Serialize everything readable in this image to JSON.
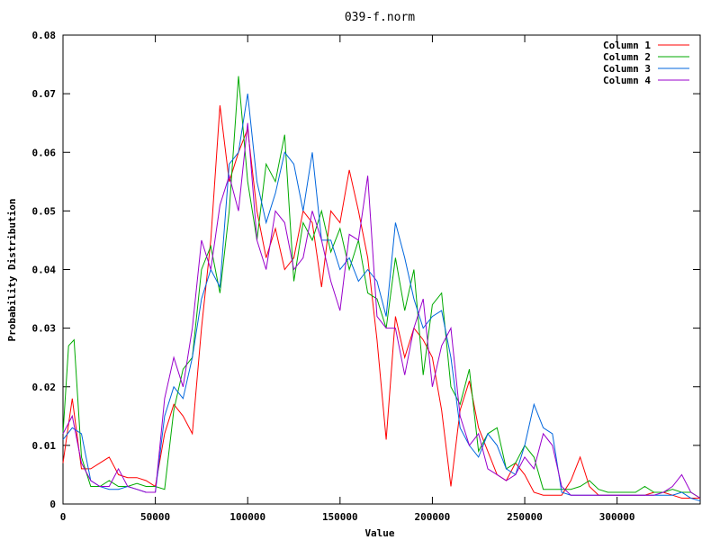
{
  "chart_data": {
    "type": "line",
    "title": "039-f.norm",
    "xlabel": "Value",
    "ylabel": "Probability Distribution",
    "xlim": [
      0,
      345000
    ],
    "ylim": [
      0,
      0.08
    ],
    "xticks": [
      0,
      50000,
      100000,
      150000,
      200000,
      250000,
      300000
    ],
    "yticks": [
      0,
      0.01,
      0.02,
      0.03,
      0.04,
      0.05,
      0.06,
      0.07,
      0.08
    ],
    "xtick_labels": [
      "0",
      "50000",
      "100000",
      "150000",
      "200000",
      "250000",
      "300000"
    ],
    "ytick_labels": [
      "0",
      "0.01",
      "0.02",
      "0.03",
      "0.04",
      "0.05",
      "0.06",
      "0.07",
      "0.08"
    ],
    "grid": false,
    "legend_position": "top-right",
    "series": [
      {
        "name": "Column 1",
        "color": "#ff0000",
        "x": [
          0,
          5000,
          10000,
          15000,
          20000,
          25000,
          30000,
          35000,
          40000,
          45000,
          50000,
          55000,
          60000,
          65000,
          70000,
          75000,
          80000,
          85000,
          90000,
          95000,
          100000,
          105000,
          110000,
          115000,
          120000,
          125000,
          130000,
          135000,
          140000,
          145000,
          150000,
          155000,
          160000,
          165000,
          170000,
          175000,
          180000,
          185000,
          190000,
          195000,
          200000,
          205000,
          210000,
          215000,
          220000,
          225000,
          230000,
          235000,
          240000,
          245000,
          250000,
          255000,
          260000,
          265000,
          270000,
          275000,
          280000,
          285000,
          290000,
          295000,
          300000,
          305000,
          310000,
          315000,
          320000,
          325000,
          330000,
          335000,
          340000,
          345000
        ],
        "y": [
          0.007,
          0.018,
          0.006,
          0.006,
          0.007,
          0.008,
          0.005,
          0.0045,
          0.0045,
          0.004,
          0.003,
          0.012,
          0.017,
          0.015,
          0.012,
          0.03,
          0.045,
          0.068,
          0.055,
          0.06,
          0.064,
          0.05,
          0.042,
          0.047,
          0.04,
          0.042,
          0.05,
          0.048,
          0.037,
          0.05,
          0.048,
          0.057,
          0.05,
          0.042,
          0.028,
          0.011,
          0.032,
          0.025,
          0.03,
          0.028,
          0.025,
          0.016,
          0.003,
          0.016,
          0.021,
          0.013,
          0.009,
          0.005,
          0.004,
          0.007,
          0.005,
          0.002,
          0.0015,
          0.0015,
          0.0015,
          0.004,
          0.008,
          0.003,
          0.0015,
          0.0015,
          0.0015,
          0.0015,
          0.0015,
          0.0015,
          0.002,
          0.002,
          0.0015,
          0.001,
          0.001,
          0.001
        ]
      },
      {
        "name": "Column 2",
        "color": "#00aa00",
        "x": [
          0,
          3000,
          6000,
          10000,
          15000,
          20000,
          25000,
          30000,
          35000,
          40000,
          45000,
          50000,
          55000,
          60000,
          65000,
          70000,
          75000,
          80000,
          85000,
          90000,
          95000,
          100000,
          105000,
          110000,
          115000,
          120000,
          125000,
          130000,
          135000,
          140000,
          145000,
          150000,
          155000,
          160000,
          165000,
          170000,
          175000,
          180000,
          185000,
          190000,
          195000,
          200000,
          205000,
          210000,
          215000,
          220000,
          225000,
          230000,
          235000,
          240000,
          245000,
          250000,
          255000,
          260000,
          265000,
          270000,
          275000,
          280000,
          285000,
          290000,
          295000,
          300000,
          305000,
          310000,
          315000,
          320000,
          325000,
          330000,
          335000,
          340000,
          345000
        ],
        "y": [
          0.012,
          0.027,
          0.028,
          0.008,
          0.003,
          0.003,
          0.004,
          0.003,
          0.003,
          0.0035,
          0.003,
          0.003,
          0.0025,
          0.016,
          0.023,
          0.025,
          0.04,
          0.044,
          0.036,
          0.05,
          0.073,
          0.055,
          0.045,
          0.058,
          0.055,
          0.063,
          0.038,
          0.048,
          0.045,
          0.05,
          0.043,
          0.047,
          0.04,
          0.045,
          0.036,
          0.035,
          0.03,
          0.042,
          0.033,
          0.04,
          0.022,
          0.034,
          0.036,
          0.02,
          0.017,
          0.023,
          0.009,
          0.012,
          0.013,
          0.006,
          0.007,
          0.01,
          0.008,
          0.0025,
          0.0025,
          0.0025,
          0.0025,
          0.003,
          0.004,
          0.0025,
          0.002,
          0.002,
          0.002,
          0.002,
          0.003,
          0.002,
          0.002,
          0.0025,
          0.002,
          0.002,
          0.001
        ]
      },
      {
        "name": "Column 3",
        "color": "#0066dd",
        "x": [
          0,
          5000,
          10000,
          15000,
          20000,
          25000,
          30000,
          35000,
          40000,
          45000,
          50000,
          55000,
          60000,
          65000,
          70000,
          75000,
          80000,
          85000,
          90000,
          95000,
          100000,
          105000,
          110000,
          115000,
          120000,
          125000,
          130000,
          135000,
          140000,
          145000,
          150000,
          155000,
          160000,
          165000,
          170000,
          175000,
          180000,
          185000,
          190000,
          195000,
          200000,
          205000,
          210000,
          215000,
          220000,
          225000,
          230000,
          235000,
          240000,
          245000,
          250000,
          255000,
          260000,
          265000,
          270000,
          275000,
          280000,
          285000,
          290000,
          295000,
          300000,
          305000,
          310000,
          315000,
          320000,
          325000,
          330000,
          335000,
          340000,
          345000
        ],
        "y": [
          0.011,
          0.013,
          0.012,
          0.004,
          0.003,
          0.0025,
          0.0025,
          0.003,
          0.0025,
          0.002,
          0.002,
          0.015,
          0.02,
          0.018,
          0.025,
          0.035,
          0.04,
          0.037,
          0.058,
          0.06,
          0.07,
          0.055,
          0.048,
          0.053,
          0.06,
          0.058,
          0.05,
          0.06,
          0.045,
          0.045,
          0.04,
          0.042,
          0.038,
          0.04,
          0.038,
          0.032,
          0.048,
          0.042,
          0.035,
          0.03,
          0.032,
          0.033,
          0.025,
          0.013,
          0.01,
          0.008,
          0.012,
          0.01,
          0.006,
          0.005,
          0.01,
          0.017,
          0.013,
          0.012,
          0.002,
          0.0015,
          0.0015,
          0.0015,
          0.0015,
          0.0015,
          0.0015,
          0.0015,
          0.0015,
          0.0015,
          0.0015,
          0.0015,
          0.0015,
          0.002,
          0.001,
          0.0005
        ]
      },
      {
        "name": "Column 4",
        "color": "#9900cc",
        "x": [
          0,
          5000,
          10000,
          15000,
          20000,
          25000,
          30000,
          35000,
          40000,
          45000,
          50000,
          55000,
          60000,
          65000,
          70000,
          75000,
          80000,
          85000,
          90000,
          95000,
          100000,
          105000,
          110000,
          115000,
          120000,
          125000,
          130000,
          135000,
          140000,
          145000,
          150000,
          155000,
          160000,
          165000,
          170000,
          175000,
          180000,
          185000,
          190000,
          195000,
          200000,
          205000,
          210000,
          215000,
          220000,
          225000,
          230000,
          235000,
          240000,
          245000,
          250000,
          255000,
          260000,
          265000,
          270000,
          275000,
          280000,
          285000,
          290000,
          295000,
          300000,
          305000,
          310000,
          315000,
          320000,
          325000,
          330000,
          335000,
          340000,
          345000
        ],
        "y": [
          0.012,
          0.015,
          0.007,
          0.004,
          0.003,
          0.003,
          0.006,
          0.003,
          0.0025,
          0.002,
          0.002,
          0.018,
          0.025,
          0.02,
          0.03,
          0.045,
          0.04,
          0.051,
          0.056,
          0.05,
          0.065,
          0.045,
          0.04,
          0.05,
          0.048,
          0.04,
          0.042,
          0.05,
          0.045,
          0.038,
          0.033,
          0.046,
          0.045,
          0.056,
          0.032,
          0.03,
          0.03,
          0.022,
          0.03,
          0.035,
          0.02,
          0.027,
          0.03,
          0.015,
          0.01,
          0.012,
          0.006,
          0.005,
          0.004,
          0.005,
          0.008,
          0.006,
          0.012,
          0.01,
          0.003,
          0.0015,
          0.0015,
          0.0015,
          0.0015,
          0.0015,
          0.0015,
          0.0015,
          0.0015,
          0.0015,
          0.0015,
          0.002,
          0.003,
          0.005,
          0.002,
          0.001
        ]
      }
    ]
  }
}
